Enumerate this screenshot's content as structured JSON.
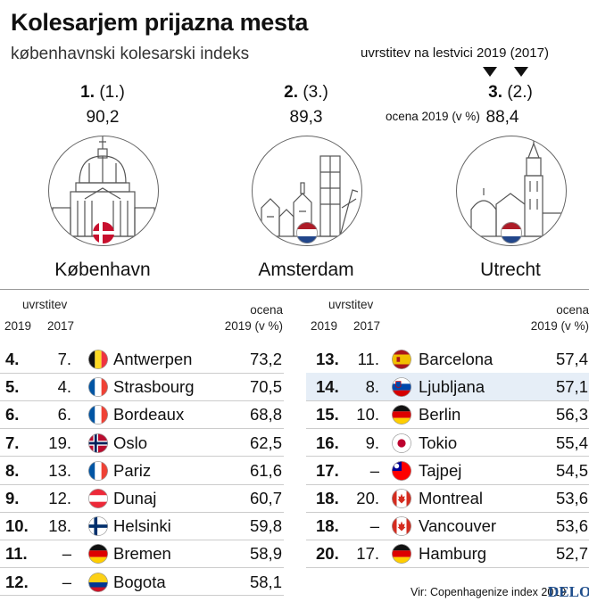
{
  "header": {
    "title": "Kolesarjem prijazna mesta",
    "subtitle": "københavnski kolesarski indeks",
    "legend_rank": "uvrstitev na lestvici 2019 (2017)",
    "legend_score": "ocena 2019 (v %)"
  },
  "podium": [
    {
      "rank": "1.",
      "prev": "(1.)",
      "score": "90,2",
      "city": "København",
      "flag": "denmark",
      "icon": "dome-building-icon"
    },
    {
      "rank": "2.",
      "prev": "(3.)",
      "score": "89,3",
      "city": "Amsterdam",
      "flag": "netherlands",
      "icon": "city-skyline-icon"
    },
    {
      "rank": "3.",
      "prev": "(2.)",
      "score": "88,4",
      "city": "Utrecht",
      "flag": "netherlands",
      "icon": "church-tower-icon"
    }
  ],
  "table_header": {
    "uvrstitev": "uvrstitev",
    "y2019": "2019",
    "y2017": "2017",
    "ocena": "ocena",
    "ocena_unit": "2019 (v %)"
  },
  "left_rows": [
    {
      "rank": "4.",
      "prev": "7.",
      "city": "Antwerpen",
      "score": "73,2",
      "flag": "belgium"
    },
    {
      "rank": "5.",
      "prev": "4.",
      "city": "Strasbourg",
      "score": "70,5",
      "flag": "france"
    },
    {
      "rank": "6.",
      "prev": "6.",
      "city": "Bordeaux",
      "score": "68,8",
      "flag": "france"
    },
    {
      "rank": "7.",
      "prev": "19.",
      "city": "Oslo",
      "score": "62,5",
      "flag": "norway"
    },
    {
      "rank": "8.",
      "prev": "13.",
      "city": "Pariz",
      "score": "61,6",
      "flag": "france"
    },
    {
      "rank": "9.",
      "prev": "12.",
      "city": "Dunaj",
      "score": "60,7",
      "flag": "austria"
    },
    {
      "rank": "10.",
      "prev": "18.",
      "city": "Helsinki",
      "score": "59,8",
      "flag": "finland"
    },
    {
      "rank": "11.",
      "prev": "–",
      "city": "Bremen",
      "score": "58,9",
      "flag": "germany"
    },
    {
      "rank": "12.",
      "prev": "–",
      "city": "Bogota",
      "score": "58,1",
      "flag": "colombia"
    }
  ],
  "right_rows": [
    {
      "rank": "13.",
      "prev": "11.",
      "city": "Barcelona",
      "score": "57,4",
      "flag": "spain"
    },
    {
      "rank": "14.",
      "prev": "8.",
      "city": "Ljubljana",
      "score": "57,1",
      "flag": "slovenia",
      "highlight": true
    },
    {
      "rank": "15.",
      "prev": "10.",
      "city": "Berlin",
      "score": "56,3",
      "flag": "germany"
    },
    {
      "rank": "16.",
      "prev": "9.",
      "city": "Tokio",
      "score": "55,4",
      "flag": "japan"
    },
    {
      "rank": "17.",
      "prev": "–",
      "city": "Tajpej",
      "score": "54,5",
      "flag": "taiwan"
    },
    {
      "rank": "18.",
      "prev": "20.",
      "city": "Montreal",
      "score": "53,6",
      "flag": "canada"
    },
    {
      "rank": "18.",
      "prev": "–",
      "city": "Vancouver",
      "score": "53,6",
      "flag": "canada"
    },
    {
      "rank": "20.",
      "prev": "17.",
      "city": "Hamburg",
      "score": "52,7",
      "flag": "germany"
    }
  ],
  "footer": {
    "source": "Vir: Copenhagenize index 2019",
    "logo": "DELO"
  },
  "colors": {
    "highlight_row": "#e6eef7",
    "logo": "#1f4e8c"
  }
}
